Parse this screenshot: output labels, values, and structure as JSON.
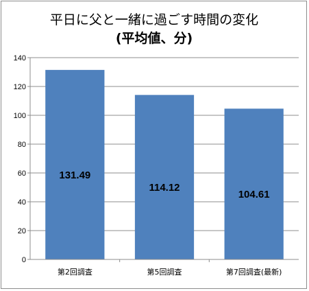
{
  "chart_data": {
    "type": "bar",
    "title": "平日に父と一緒に過ごす時間の変化",
    "subtitle": "(平均値、分)",
    "categories": [
      "第2回調査",
      "第5回調査",
      "第7回調査(最新)"
    ],
    "values": [
      131.49,
      114.12,
      104.61
    ],
    "data_labels": [
      "131.49",
      "114.12",
      "104.61"
    ],
    "y_ticks": [
      "0",
      "20",
      "40",
      "60",
      "80",
      "100",
      "120",
      "140"
    ],
    "ylim": [
      0,
      140
    ],
    "y_step": 20,
    "grid": true,
    "legend": "none",
    "bar_color": "#4f81bd",
    "grid_color": "#8c8c8c"
  }
}
